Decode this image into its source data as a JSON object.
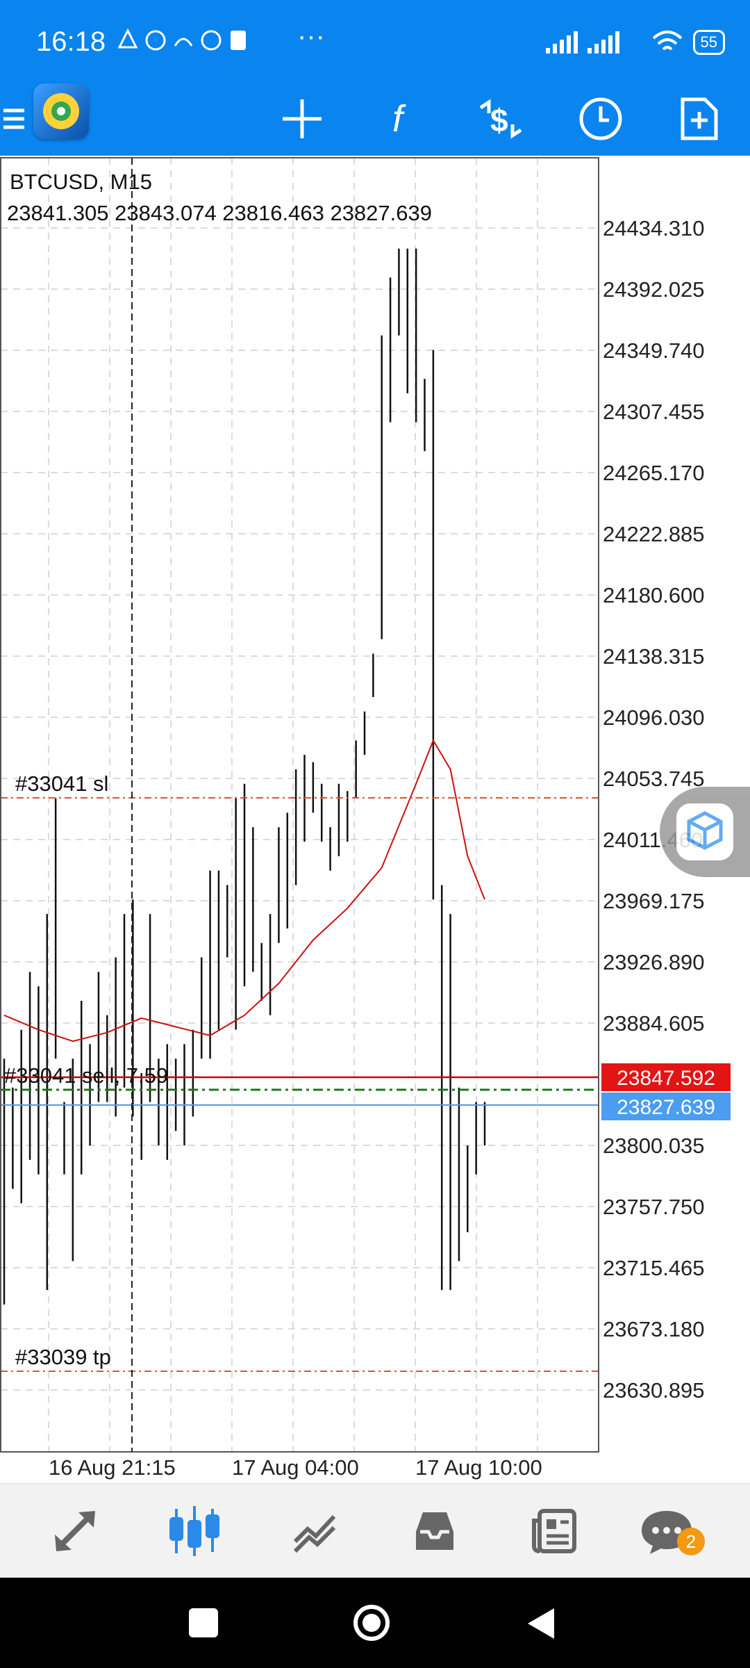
{
  "status_bar": {
    "time": "16:18",
    "battery": "55",
    "extra": "···"
  },
  "toolbar": {
    "icons": [
      "menu-icon",
      "app-logo-icon",
      "crosshair-icon",
      "indicators-icon",
      "trade-icon",
      "timeframe-icon",
      "new-order-icon"
    ]
  },
  "chart": {
    "symbol": "BTCUSD, M15",
    "ohlc": "23841.305 23843.074 23816.463 23827.639",
    "price_labels": [
      "24434.310",
      "24392.025",
      "24349.740",
      "24307.455",
      "24265.170",
      "24222.885",
      "24180.600",
      "24138.315",
      "24096.030",
      "24053.745",
      "24011.460",
      "23969.175",
      "23926.890",
      "23884.605",
      "23800.035",
      "23757.750",
      "23715.465",
      "23673.180",
      "23630.895"
    ],
    "time_labels": [
      "16 Aug 21:15",
      "17 Aug 04:00",
      "17 Aug 10:00"
    ],
    "sl_label": "#33041 sl",
    "tp_label": "#33039 tp",
    "order_label": "#33041 sell, 7.59",
    "order_price": "23847.592",
    "current_price": "23827.639",
    "colors": {
      "order_line": "#d40000",
      "bid_line": "#4a9df0",
      "sl_tp_line": "#e0552a",
      "trade_line": "#1a7a1a",
      "ma_line": "#cc1111"
    }
  },
  "chart_data": {
    "type": "line",
    "title": "BTCUSD, M15",
    "ylim": [
      23600,
      24450
    ],
    "bars": [
      [
        23690,
        23860
      ],
      [
        23770,
        23840
      ],
      [
        23760,
        23880
      ],
      [
        23790,
        23920
      ],
      [
        23780,
        23910
      ],
      [
        23700,
        23960
      ],
      [
        23860,
        24040
      ],
      [
        23780,
        23830
      ],
      [
        23720,
        23860
      ],
      [
        23780,
        23900
      ],
      [
        23800,
        23870
      ],
      [
        23830,
        23920
      ],
      [
        23830,
        23890
      ],
      [
        23820,
        23930
      ],
      [
        23840,
        23960
      ],
      [
        23820,
        23970
      ],
      [
        23790,
        23850
      ],
      [
        23830,
        23960
      ],
      [
        23800,
        23860
      ],
      [
        23790,
        23870
      ],
      [
        23810,
        23860
      ],
      [
        23800,
        23870
      ],
      [
        23820,
        23880
      ],
      [
        23860,
        23930
      ],
      [
        23860,
        23990
      ],
      [
        23880,
        23990
      ],
      [
        23930,
        23980
      ],
      [
        23880,
        24040
      ],
      [
        23910,
        24050
      ],
      [
        23920,
        24020
      ],
      [
        23900,
        23940
      ],
      [
        23890,
        23960
      ],
      [
        23940,
        24020
      ],
      [
        23950,
        24030
      ],
      [
        23980,
        24060
      ],
      [
        24010,
        24070
      ],
      [
        24030,
        24065
      ],
      [
        24010,
        24050
      ],
      [
        23990,
        24020
      ],
      [
        24000,
        24050
      ],
      [
        24010,
        24045
      ],
      [
        24040,
        24080
      ],
      [
        24070,
        24100
      ],
      [
        24110,
        24140
      ],
      [
        24150,
        24360
      ],
      [
        24300,
        24400
      ],
      [
        24360,
        24420
      ],
      [
        24320,
        24420
      ],
      [
        24300,
        24420
      ],
      [
        24280,
        24330
      ],
      [
        23970,
        24350
      ],
      [
        23700,
        23980
      ],
      [
        23700,
        23960
      ],
      [
        23720,
        23840
      ],
      [
        23740,
        23800
      ],
      [
        23780,
        23830
      ],
      [
        23800,
        23830
      ]
    ],
    "ma": [
      [
        0,
        23890
      ],
      [
        4,
        23880
      ],
      [
        8,
        23872
      ],
      [
        12,
        23878
      ],
      [
        16,
        23888
      ],
      [
        20,
        23882
      ],
      [
        24,
        23876
      ],
      [
        28,
        23890
      ],
      [
        32,
        23912
      ],
      [
        36,
        23942
      ],
      [
        40,
        23964
      ],
      [
        44,
        23992
      ],
      [
        48,
        24050
      ],
      [
        50,
        24080
      ],
      [
        52,
        24060
      ],
      [
        54,
        24000
      ],
      [
        56,
        23970
      ]
    ]
  },
  "bottom_nav": {
    "items": [
      "quotes-icon",
      "charts-icon",
      "trade-icon",
      "history-icon",
      "news-icon",
      "messages-icon"
    ],
    "badge": "2"
  }
}
